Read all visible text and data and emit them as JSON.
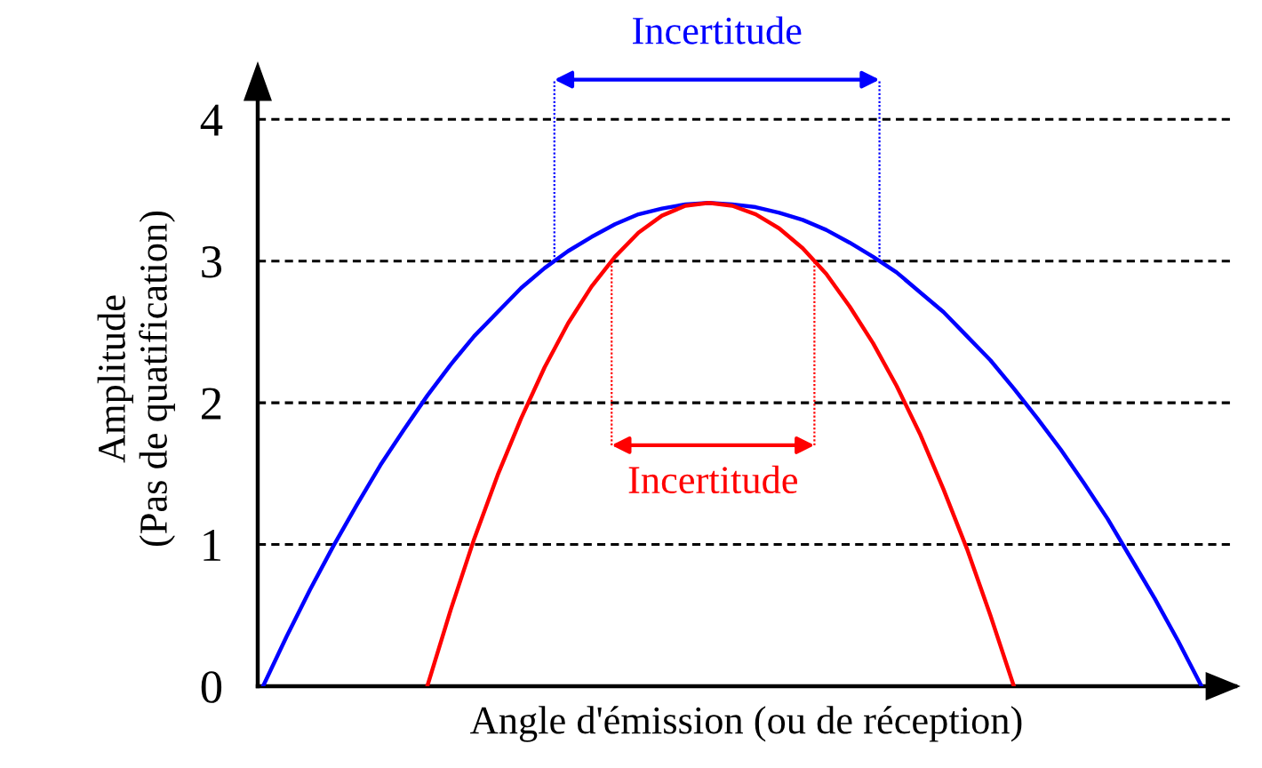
{
  "chart_data": {
    "type": "line",
    "xlabel": "Angle d'émission (ou de réception)",
    "ylabel": "Amplitude\n(Pas de quatification)",
    "categories": [
      null,
      null,
      null,
      null,
      null,
      null,
      null,
      null,
      null,
      null,
      null,
      null,
      null,
      null,
      null,
      null,
      null,
      null,
      null,
      null,
      null,
      null,
      null,
      null,
      null,
      null,
      null,
      null,
      null,
      null,
      null,
      null,
      null,
      null,
      null,
      null,
      null,
      null,
      null,
      null,
      null
    ],
    "series": [
      {
        "color": "#0000ff",
        "values": [
          0,
          0.35,
          0.68,
          0.99,
          1.28,
          1.56,
          1.81,
          2.05,
          2.27,
          2.47,
          2.64,
          2.81,
          2.95,
          3.07,
          3.17,
          3.26,
          3.33,
          3.37,
          3.4,
          3.41,
          3.4,
          3.38,
          3.34,
          3.29,
          3.22,
          3.13,
          3.03,
          2.92,
          2.78,
          2.64,
          2.47,
          2.3,
          2.1,
          1.89,
          1.67,
          1.43,
          1.18,
          0.9,
          0.62,
          0.32,
          0
        ]
      },
      {
        "color": "#ff0000",
        "values": [
          null,
          null,
          null,
          null,
          null,
          null,
          null,
          0,
          0.54,
          1.04,
          1.49,
          1.89,
          2.25,
          2.56,
          2.82,
          3.03,
          3.2,
          3.32,
          3.39,
          3.41,
          3.39,
          3.33,
          3.23,
          3.09,
          2.91,
          2.68,
          2.42,
          2.12,
          1.78,
          1.39,
          0.97,
          0.5,
          0,
          null,
          null,
          null,
          null,
          null,
          null,
          null,
          null
        ]
      }
    ],
    "annotations": [
      "Incertitude",
      "Incertitude"
    ],
    "ylim": [
      0,
      4.34
    ],
    "yticks": [
      0,
      1,
      2,
      3,
      4
    ],
    "grid": "y",
    "tick_labels": "y",
    "marker": "none",
    "line_style": "solid"
  }
}
